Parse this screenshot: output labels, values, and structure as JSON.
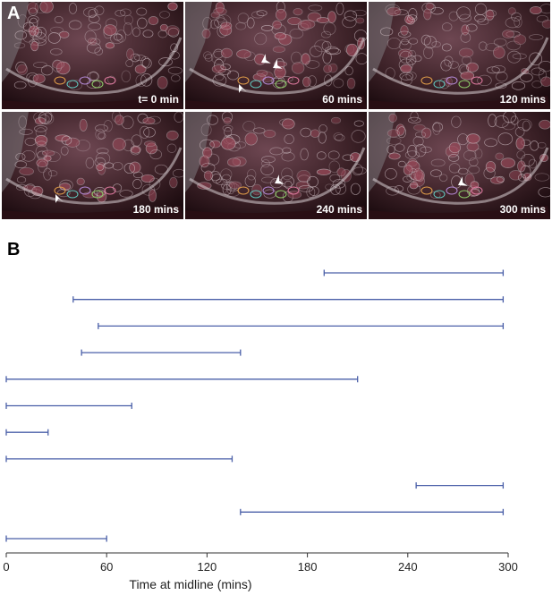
{
  "panels": {
    "a_label": "A",
    "b_label": "B"
  },
  "micrographs": [
    {
      "time_label": "t= 0 min",
      "arrows": 0
    },
    {
      "time_label": "60 mins",
      "arrows": 3
    },
    {
      "time_label": "120 mins",
      "arrows": 0
    },
    {
      "time_label": "180 mins",
      "arrows": 1
    },
    {
      "time_label": "240 mins",
      "arrows": 1
    },
    {
      "time_label": "300 mins",
      "arrows": 1
    }
  ],
  "chart_data": {
    "type": "range",
    "xlabel": "Time at midline (mins)",
    "xlim": [
      0,
      300
    ],
    "xticks": [
      0,
      60,
      120,
      180,
      240,
      300
    ],
    "color": "#4a5fa8",
    "grid": false,
    "intervals": [
      {
        "start": 190,
        "end": 297
      },
      {
        "start": 40,
        "end": 297
      },
      {
        "start": 55,
        "end": 297
      },
      {
        "start": 45,
        "end": 140
      },
      {
        "start": 0,
        "end": 210
      },
      {
        "start": 0,
        "end": 75
      },
      {
        "start": 0,
        "end": 25
      },
      {
        "start": 0,
        "end": 135
      },
      {
        "start": 245,
        "end": 297
      },
      {
        "start": 140,
        "end": 297
      },
      {
        "start": 0,
        "end": 60
      }
    ]
  }
}
